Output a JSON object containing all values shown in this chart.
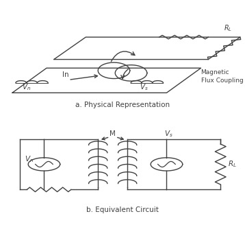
{
  "bg_color": "#ffffff",
  "line_color": "#404040",
  "text_color": "#000000",
  "label_a": "a. Physical Representation",
  "label_b": "b. Equivalent Circuit",
  "label_flux": "Magnetic\nFlux Coupling",
  "fig_width": 3.58,
  "fig_height": 3.28,
  "dpi": 100
}
